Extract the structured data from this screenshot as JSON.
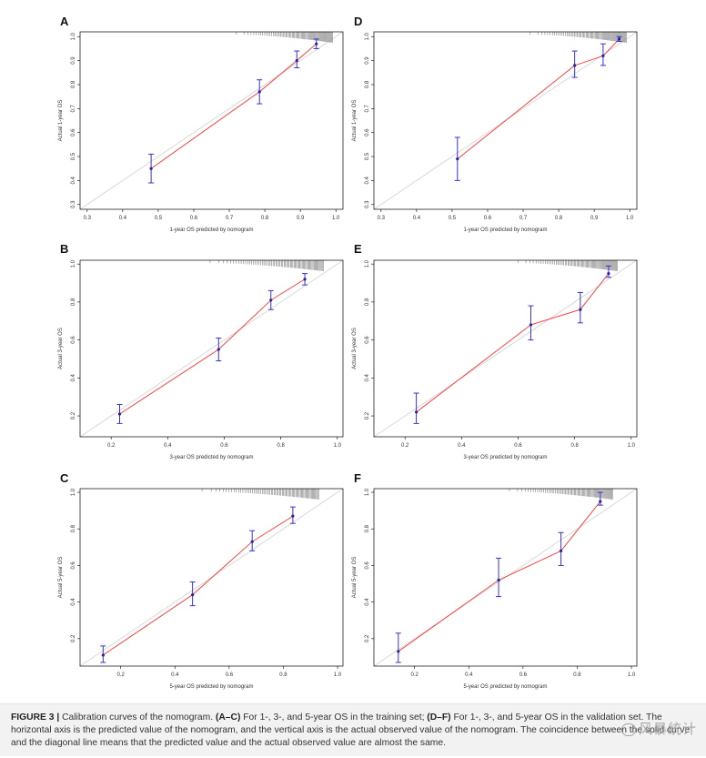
{
  "caption": {
    "label": "FIGURE 3 |",
    "t1": " Calibration curves of the nomogram. ",
    "b1": "(A–C)",
    "t2": " For 1-, 3-, and 5-year OS in the training set; ",
    "b2": "(D–F)",
    "t3": " For 1-, 3-, and 5-year OS in the validation set. The horizontal axis is the predicted value of the nomogram, and the vertical axis is the actual observed value of the nomogram. The coincidence between the solid curve and the diagonal line means that the predicted value and the actual observed value are almost the same."
  },
  "watermark": "风暴统计",
  "colors": {
    "line": "#ff3030",
    "errorbar": "#3333cc",
    "point": "#2222aa",
    "diagonal": "#d8d8d8",
    "rug": "#666666",
    "frame": "#000000"
  },
  "chart_data": [
    {
      "type": "line",
      "panel": "A",
      "xlabel": "1-year OS predicted by nomogram",
      "ylabel": "Actual 1-year OS",
      "xlim": [
        0.28,
        1.02
      ],
      "ylim": [
        0.28,
        1.02
      ],
      "xticks": [
        0.3,
        0.4,
        0.5,
        0.6,
        0.7,
        0.8,
        0.9,
        1.0
      ],
      "yticks": [
        0.3,
        0.4,
        0.5,
        0.6,
        0.7,
        0.8,
        0.9,
        1.0
      ],
      "tick_labels": [
        "0.3",
        "0.4",
        "0.5",
        "0.6",
        "0.7",
        "0.8",
        "0.9",
        "1.0"
      ],
      "rug_range": [
        0.72,
        0.99
      ],
      "points": [
        {
          "x": 0.48,
          "y": 0.45,
          "lo": 0.39,
          "hi": 0.51
        },
        {
          "x": 0.785,
          "y": 0.77,
          "lo": 0.72,
          "hi": 0.82
        },
        {
          "x": 0.89,
          "y": 0.9,
          "lo": 0.87,
          "hi": 0.94
        },
        {
          "x": 0.945,
          "y": 0.97,
          "lo": 0.95,
          "hi": 0.99
        }
      ]
    },
    {
      "type": "line",
      "panel": "B",
      "xlabel": "3-year OS predicted by nomogram",
      "ylabel": "Actual 3-year OS",
      "xlim": [
        0.09,
        1.02
      ],
      "ylim": [
        0.09,
        1.02
      ],
      "xticks": [
        0.2,
        0.4,
        0.6,
        0.8,
        1.0
      ],
      "yticks": [
        0.2,
        0.4,
        0.6,
        0.8,
        1.0
      ],
      "tick_labels": [
        "0.2",
        "0.4",
        "0.6",
        "0.8",
        "1.0"
      ],
      "rug_range": [
        0.55,
        0.95
      ],
      "points": [
        {
          "x": 0.23,
          "y": 0.21,
          "lo": 0.16,
          "hi": 0.26
        },
        {
          "x": 0.58,
          "y": 0.55,
          "lo": 0.49,
          "hi": 0.61
        },
        {
          "x": 0.765,
          "y": 0.81,
          "lo": 0.76,
          "hi": 0.86
        },
        {
          "x": 0.885,
          "y": 0.92,
          "lo": 0.89,
          "hi": 0.95
        }
      ]
    },
    {
      "type": "line",
      "panel": "C",
      "xlabel": "5-year OS predicted by nomogram",
      "ylabel": "Actual 5-year OS",
      "xlim": [
        0.05,
        1.02
      ],
      "ylim": [
        0.05,
        1.02
      ],
      "xticks": [
        0.2,
        0.4,
        0.6,
        0.8,
        1.0
      ],
      "yticks": [
        0.2,
        0.4,
        0.6,
        0.8,
        1.0
      ],
      "tick_labels": [
        "0.2",
        "0.4",
        "0.6",
        "0.8",
        "1.0"
      ],
      "rug_range": [
        0.5,
        0.93
      ],
      "points": [
        {
          "x": 0.135,
          "y": 0.11,
          "lo": 0.07,
          "hi": 0.16
        },
        {
          "x": 0.465,
          "y": 0.44,
          "lo": 0.38,
          "hi": 0.51
        },
        {
          "x": 0.685,
          "y": 0.73,
          "lo": 0.68,
          "hi": 0.79
        },
        {
          "x": 0.835,
          "y": 0.87,
          "lo": 0.83,
          "hi": 0.92
        }
      ]
    },
    {
      "type": "line",
      "panel": "D",
      "xlabel": "1-year OS predicted by nomogram",
      "ylabel": "Actual 1-year OS",
      "xlim": [
        0.28,
        1.02
      ],
      "ylim": [
        0.28,
        1.02
      ],
      "xticks": [
        0.3,
        0.4,
        0.5,
        0.6,
        0.7,
        0.8,
        0.9,
        1.0
      ],
      "yticks": [
        0.3,
        0.4,
        0.5,
        0.6,
        0.7,
        0.8,
        0.9,
        1.0
      ],
      "tick_labels": [
        "0.3",
        "0.4",
        "0.5",
        "0.6",
        "0.7",
        "0.8",
        "0.9",
        "1.0"
      ],
      "rug_range": [
        0.72,
        0.99
      ],
      "points": [
        {
          "x": 0.515,
          "y": 0.49,
          "lo": 0.4,
          "hi": 0.58
        },
        {
          "x": 0.845,
          "y": 0.88,
          "lo": 0.83,
          "hi": 0.94
        },
        {
          "x": 0.925,
          "y": 0.92,
          "lo": 0.88,
          "hi": 0.97
        },
        {
          "x": 0.97,
          "y": 0.99,
          "lo": 0.98,
          "hi": 1.0
        }
      ]
    },
    {
      "type": "line",
      "panel": "E",
      "xlabel": "3-year OS predicted by nomogram",
      "ylabel": "Actual 3-year OS",
      "xlim": [
        0.09,
        1.02
      ],
      "ylim": [
        0.09,
        1.02
      ],
      "xticks": [
        0.2,
        0.4,
        0.6,
        0.8,
        1.0
      ],
      "yticks": [
        0.2,
        0.4,
        0.6,
        0.8,
        1.0
      ],
      "tick_labels": [
        "0.2",
        "0.4",
        "0.6",
        "0.8",
        "1.0"
      ],
      "rug_range": [
        0.6,
        0.95
      ],
      "points": [
        {
          "x": 0.24,
          "y": 0.22,
          "lo": 0.16,
          "hi": 0.32
        },
        {
          "x": 0.645,
          "y": 0.68,
          "lo": 0.6,
          "hi": 0.78
        },
        {
          "x": 0.82,
          "y": 0.76,
          "lo": 0.69,
          "hi": 0.85
        },
        {
          "x": 0.92,
          "y": 0.95,
          "lo": 0.93,
          "hi": 0.99
        }
      ]
    },
    {
      "type": "line",
      "panel": "F",
      "xlabel": "5-year OS predicted by nomogram",
      "ylabel": "Actual 5-year OS",
      "xlim": [
        0.05,
        1.02
      ],
      "ylim": [
        0.05,
        1.02
      ],
      "xticks": [
        0.2,
        0.4,
        0.6,
        0.8,
        1.0
      ],
      "yticks": [
        0.2,
        0.4,
        0.6,
        0.8,
        1.0
      ],
      "tick_labels": [
        "0.2",
        "0.4",
        "0.6",
        "0.8",
        "1.0"
      ],
      "rug_range": [
        0.55,
        0.93
      ],
      "points": [
        {
          "x": 0.14,
          "y": 0.13,
          "lo": 0.07,
          "hi": 0.23
        },
        {
          "x": 0.51,
          "y": 0.52,
          "lo": 0.43,
          "hi": 0.64
        },
        {
          "x": 0.74,
          "y": 0.68,
          "lo": 0.6,
          "hi": 0.78
        },
        {
          "x": 0.885,
          "y": 0.95,
          "lo": 0.93,
          "hi": 1.0
        }
      ]
    }
  ]
}
